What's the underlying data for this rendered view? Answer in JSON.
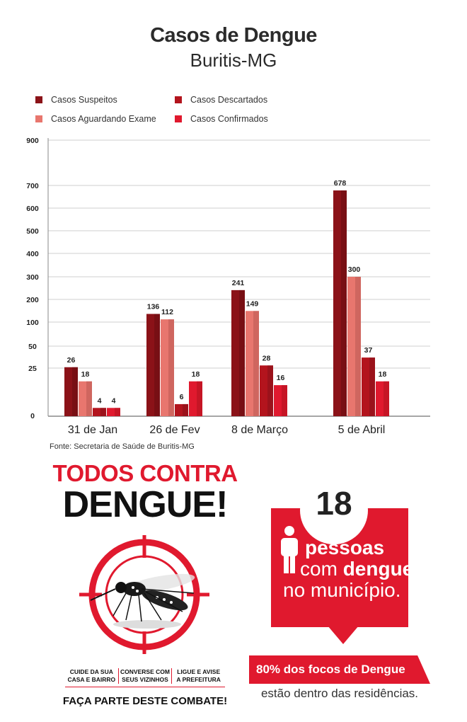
{
  "header": {
    "title": "Casos de Dengue",
    "subtitle": "Buritis-MG"
  },
  "legend": [
    {
      "label": "Casos Suspeitos",
      "color": "#8b1218"
    },
    {
      "label": "Casos Descartados",
      "color": "#b3141d"
    },
    {
      "label": "Casos Aguardando Exame",
      "color": "#e8766e"
    },
    {
      "label": "Casos Confirmados",
      "color": "#e0192e"
    }
  ],
  "chart_data": {
    "type": "bar",
    "categories": [
      "31 de Jan",
      "26 de Fev",
      "8 de Março",
      "5 de Abril"
    ],
    "series": [
      {
        "name": "Casos Suspeitos",
        "values": [
          26,
          136,
          241,
          678
        ]
      },
      {
        "name": "Casos Aguardando Exame",
        "values": [
          18,
          112,
          149,
          300
        ]
      },
      {
        "name": "Casos Descartados",
        "values": [
          4,
          6,
          28,
          37
        ]
      },
      {
        "name": "Casos Confirmados",
        "values": [
          4,
          18,
          16,
          18
        ]
      }
    ],
    "y_ticks": [
      0,
      25,
      50,
      100,
      200,
      300,
      400,
      500,
      600,
      700,
      900
    ],
    "scale": "non-uniform (tick labels evenly spaced)",
    "ylim": [
      0,
      900
    ],
    "grid": true
  },
  "source": "Fonte: Secretaria de Saúde de Buritis-MG",
  "campaign": {
    "line1": "TODOS CONTRA",
    "line2": "DENGUE!",
    "tips": [
      "CUIDE DA SUA\nCASA E BAIRRO",
      "CONVERSE COM\nSEUS VIZINHOS",
      "LIGUE E AVISE\nA PREFEITURA"
    ],
    "slogan": "FAÇA PARTE DESTE COMBATE!"
  },
  "stat": {
    "number": "18",
    "line1": "pessoas",
    "line2_pre": "com ",
    "line2_bold": "dengue",
    "line3": "no município.",
    "banner": "80% dos focos de Dengue",
    "banner_sub": "estão dentro das residências."
  }
}
